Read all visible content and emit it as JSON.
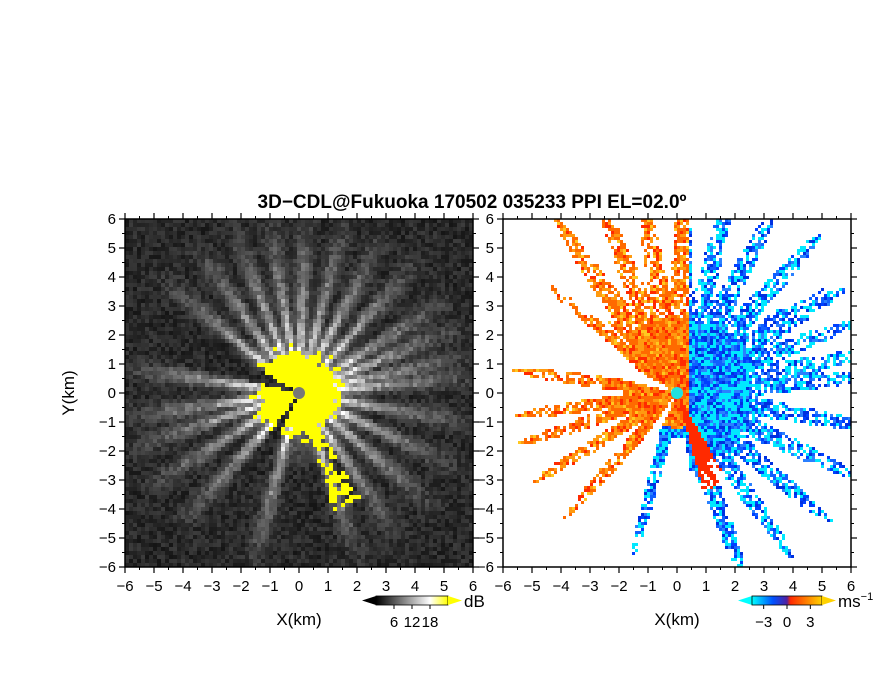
{
  "title": "3D−CDL@Fukuoka 170502 035233 PPI EL=02.0º",
  "chart_data": [
    {
      "type": "heatmap",
      "name": "reflectivity-ppi",
      "xlabel": "X(km)",
      "ylabel": "Y(km)",
      "xlim": [
        -6,
        6
      ],
      "ylim": [
        -6,
        6
      ],
      "xticks": [
        -6,
        -5,
        -4,
        -3,
        -2,
        -1,
        0,
        1,
        2,
        3,
        4,
        5,
        6
      ],
      "yticks": [
        -6,
        -5,
        -4,
        -3,
        -2,
        -1,
        0,
        1,
        2,
        3,
        4,
        5,
        6
      ],
      "radar_site": [
        0,
        0
      ],
      "colorbar": {
        "unit": "dB",
        "ticks": [
          6,
          12,
          18
        ],
        "range": [
          0,
          24
        ],
        "colors": [
          "#000000",
          "#ffffff",
          "#ffff00"
        ]
      }
    },
    {
      "type": "heatmap",
      "name": "doppler-velocity-ppi",
      "xlabel": "X(km)",
      "xlim": [
        -6,
        6
      ],
      "ylim": [
        -6,
        6
      ],
      "xticks": [
        -6,
        -5,
        -4,
        -3,
        -2,
        -1,
        0,
        1,
        2,
        3,
        4,
        5,
        6
      ],
      "yticks": [
        -6,
        -5,
        -4,
        -3,
        -2,
        -1,
        0,
        1,
        2,
        3,
        4,
        5,
        6
      ],
      "radar_site": [
        0,
        0
      ],
      "colorbar": {
        "unit": "ms",
        "unit_exp": "−1",
        "ticks": [
          "−3",
          "0",
          "3"
        ],
        "tick_values": [
          -3,
          0,
          3
        ],
        "range": [
          -4.5,
          4.5
        ],
        "colors": [
          "#00ffff",
          "#0050ff",
          "#ff2a00",
          "#ffd200"
        ]
      }
    }
  ]
}
